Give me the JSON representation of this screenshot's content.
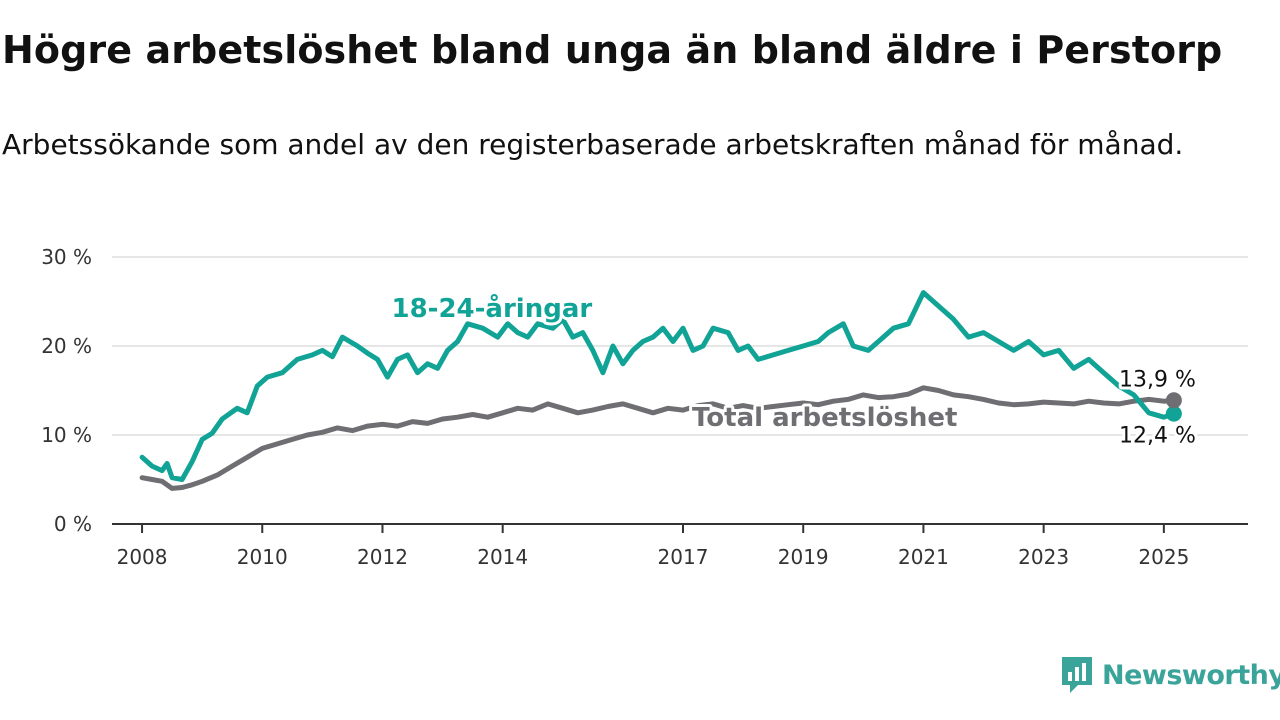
{
  "title": "Högre arbetslöshet bland unga än bland äldre i Perstorp",
  "subtitle": "Arbetssökande som andel av den registerbaserade arbetskraften månad för månad.",
  "brand": {
    "name": "Newsworthy",
    "color": "#3aa39a",
    "icon": "newsworthy-logo-icon"
  },
  "chart_data": {
    "type": "line",
    "title": "Högre arbetslöshet bland unga än bland äldre i Perstorp",
    "subtitle": "Arbetssökande som andel av den registerbaserade arbetskraften månad för månad.",
    "xlabel": "",
    "ylabel": "",
    "ylim": [
      0,
      30
    ],
    "xlim": [
      "2007-01",
      "2026-01"
    ],
    "y_ticks": [
      0,
      10,
      20,
      30
    ],
    "y_tick_labels": [
      "0 %",
      "10 %",
      "20 %",
      "30 %"
    ],
    "x_ticks": [
      "2008",
      "2010",
      "2012",
      "2014",
      "2017",
      "2019",
      "2021",
      "2023",
      "2025"
    ],
    "grid": "horizontal",
    "legend": "inline labels",
    "series": [
      {
        "name": "18-24-åringar",
        "color": "#10a396",
        "end_label": "12,4 %",
        "points": [
          [
            "2008-01",
            7.5
          ],
          [
            "2008-03",
            6.5
          ],
          [
            "2008-05",
            6.0
          ],
          [
            "2008-06",
            6.8
          ],
          [
            "2008-07",
            5.2
          ],
          [
            "2008-09",
            5.0
          ],
          [
            "2008-11",
            7.0
          ],
          [
            "2009-01",
            9.5
          ],
          [
            "2009-03",
            10.2
          ],
          [
            "2009-05",
            11.8
          ],
          [
            "2009-08",
            13.0
          ],
          [
            "2009-10",
            12.5
          ],
          [
            "2009-12",
            15.5
          ],
          [
            "2010-02",
            16.5
          ],
          [
            "2010-05",
            17.0
          ],
          [
            "2010-08",
            18.5
          ],
          [
            "2010-11",
            19.0
          ],
          [
            "2011-01",
            19.5
          ],
          [
            "2011-03",
            18.8
          ],
          [
            "2011-05",
            21.0
          ],
          [
            "2011-08",
            20.0
          ],
          [
            "2011-10",
            19.2
          ],
          [
            "2011-12",
            18.5
          ],
          [
            "2012-02",
            16.5
          ],
          [
            "2012-04",
            18.5
          ],
          [
            "2012-06",
            19.0
          ],
          [
            "2012-08",
            17.0
          ],
          [
            "2012-10",
            18.0
          ],
          [
            "2012-12",
            17.5
          ],
          [
            "2013-02",
            19.5
          ],
          [
            "2013-04",
            20.5
          ],
          [
            "2013-06",
            22.5
          ],
          [
            "2013-09",
            22.0
          ],
          [
            "2013-12",
            21.0
          ],
          [
            "2014-02",
            22.5
          ],
          [
            "2014-04",
            21.5
          ],
          [
            "2014-06",
            21.0
          ],
          [
            "2014-08",
            22.5
          ],
          [
            "2014-11",
            22.0
          ],
          [
            "2015-01",
            23.0
          ],
          [
            "2015-03",
            21.0
          ],
          [
            "2015-05",
            21.5
          ],
          [
            "2015-07",
            19.5
          ],
          [
            "2015-09",
            17.0
          ],
          [
            "2015-11",
            20.0
          ],
          [
            "2016-01",
            18.0
          ],
          [
            "2016-03",
            19.5
          ],
          [
            "2016-05",
            20.5
          ],
          [
            "2016-07",
            21.0
          ],
          [
            "2016-09",
            22.0
          ],
          [
            "2016-11",
            20.5
          ],
          [
            "2017-01",
            22.0
          ],
          [
            "2017-03",
            19.5
          ],
          [
            "2017-05",
            20.0
          ],
          [
            "2017-07",
            22.0
          ],
          [
            "2017-10",
            21.5
          ],
          [
            "2017-12",
            19.5
          ],
          [
            "2018-02",
            20.0
          ],
          [
            "2018-04",
            18.5
          ],
          [
            "2018-07",
            19.0
          ],
          [
            "2018-10",
            19.5
          ],
          [
            "2019-01",
            20.0
          ],
          [
            "2019-04",
            20.5
          ],
          [
            "2019-06",
            21.5
          ],
          [
            "2019-09",
            22.5
          ],
          [
            "2019-11",
            20.0
          ],
          [
            "2020-02",
            19.5
          ],
          [
            "2020-05",
            21.0
          ],
          [
            "2020-07",
            22.0
          ],
          [
            "2020-10",
            22.5
          ],
          [
            "2021-01",
            26.0
          ],
          [
            "2021-04",
            24.5
          ],
          [
            "2021-07",
            23.0
          ],
          [
            "2021-10",
            21.0
          ],
          [
            "2022-01",
            21.5
          ],
          [
            "2022-04",
            20.5
          ],
          [
            "2022-07",
            19.5
          ],
          [
            "2022-10",
            20.5
          ],
          [
            "2023-01",
            19.0
          ],
          [
            "2023-04",
            19.5
          ],
          [
            "2023-07",
            17.5
          ],
          [
            "2023-10",
            18.5
          ],
          [
            "2024-01",
            17.0
          ],
          [
            "2024-04",
            15.5
          ],
          [
            "2024-07",
            14.5
          ],
          [
            "2024-10",
            12.5
          ],
          [
            "2025-01",
            12.0
          ],
          [
            "2025-03",
            12.4
          ]
        ]
      },
      {
        "name": "Total arbetslöshet",
        "color": "#6e6e73",
        "end_label": "13,9 %",
        "points": [
          [
            "2008-01",
            5.2
          ],
          [
            "2008-03",
            5.0
          ],
          [
            "2008-05",
            4.8
          ],
          [
            "2008-07",
            4.0
          ],
          [
            "2008-09",
            4.1
          ],
          [
            "2008-11",
            4.4
          ],
          [
            "2009-01",
            4.8
          ],
          [
            "2009-04",
            5.5
          ],
          [
            "2009-07",
            6.5
          ],
          [
            "2009-10",
            7.5
          ],
          [
            "2010-01",
            8.5
          ],
          [
            "2010-04",
            9.0
          ],
          [
            "2010-07",
            9.5
          ],
          [
            "2010-10",
            10.0
          ],
          [
            "2011-01",
            10.3
          ],
          [
            "2011-04",
            10.8
          ],
          [
            "2011-07",
            10.5
          ],
          [
            "2011-10",
            11.0
          ],
          [
            "2012-01",
            11.2
          ],
          [
            "2012-04",
            11.0
          ],
          [
            "2012-07",
            11.5
          ],
          [
            "2012-10",
            11.3
          ],
          [
            "2013-01",
            11.8
          ],
          [
            "2013-04",
            12.0
          ],
          [
            "2013-07",
            12.3
          ],
          [
            "2013-10",
            12.0
          ],
          [
            "2014-01",
            12.5
          ],
          [
            "2014-04",
            13.0
          ],
          [
            "2014-07",
            12.8
          ],
          [
            "2014-10",
            13.5
          ],
          [
            "2015-01",
            13.0
          ],
          [
            "2015-04",
            12.5
          ],
          [
            "2015-07",
            12.8
          ],
          [
            "2015-10",
            13.2
          ],
          [
            "2016-01",
            13.5
          ],
          [
            "2016-04",
            13.0
          ],
          [
            "2016-07",
            12.5
          ],
          [
            "2016-10",
            13.0
          ],
          [
            "2017-01",
            12.8
          ],
          [
            "2017-04",
            13.3
          ],
          [
            "2017-07",
            13.5
          ],
          [
            "2017-10",
            13.0
          ],
          [
            "2018-01",
            13.3
          ],
          [
            "2018-04",
            13.0
          ],
          [
            "2018-07",
            13.2
          ],
          [
            "2018-10",
            13.4
          ],
          [
            "2019-01",
            13.6
          ],
          [
            "2019-04",
            13.4
          ],
          [
            "2019-07",
            13.8
          ],
          [
            "2019-10",
            14.0
          ],
          [
            "2020-01",
            14.5
          ],
          [
            "2020-04",
            14.2
          ],
          [
            "2020-07",
            14.3
          ],
          [
            "2020-10",
            14.6
          ],
          [
            "2021-01",
            15.3
          ],
          [
            "2021-04",
            15.0
          ],
          [
            "2021-07",
            14.5
          ],
          [
            "2021-10",
            14.3
          ],
          [
            "2022-01",
            14.0
          ],
          [
            "2022-04",
            13.6
          ],
          [
            "2022-07",
            13.4
          ],
          [
            "2022-10",
            13.5
          ],
          [
            "2023-01",
            13.7
          ],
          [
            "2023-04",
            13.6
          ],
          [
            "2023-07",
            13.5
          ],
          [
            "2023-10",
            13.8
          ],
          [
            "2024-01",
            13.6
          ],
          [
            "2024-04",
            13.5
          ],
          [
            "2024-07",
            13.8
          ],
          [
            "2024-10",
            14.0
          ],
          [
            "2025-01",
            13.8
          ],
          [
            "2025-03",
            13.9
          ]
        ]
      }
    ]
  }
}
